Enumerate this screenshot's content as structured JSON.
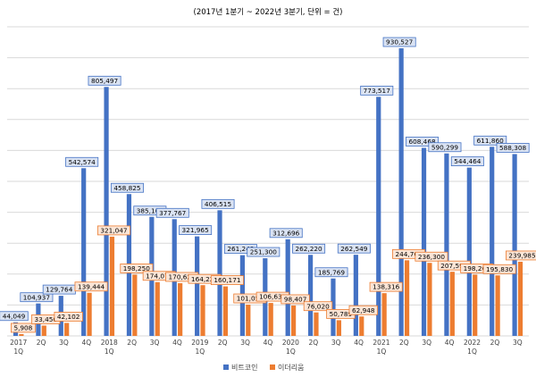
{
  "chart_data": {
    "type": "bar",
    "title": "(2017년 1분기 ~ 2022년 3분기, 단위 = 건)",
    "xlabel": "",
    "ylabel": "",
    "ylim": [
      0,
      1000000
    ],
    "grid": true,
    "legend_position": "bottom",
    "categories": [
      "2017 1Q",
      "2Q",
      "3Q",
      "4Q",
      "2018 1Q",
      "2Q",
      "3Q",
      "4Q",
      "2019 1Q",
      "2Q",
      "3Q",
      "4Q",
      "2020 1Q",
      "2Q",
      "3Q",
      "4Q",
      "2021 1Q",
      "2Q",
      "3Q",
      "4Q",
      "2022 1Q",
      "2Q",
      "3Q"
    ],
    "series": [
      {
        "name": "비트코인",
        "color": "#4472c4",
        "values": [
          44049,
          104937,
          129764,
          542574,
          805497,
          458825,
          385163,
          377767,
          321965,
          406515,
          261242,
          251300,
          312696,
          262220,
          185769,
          262549,
          773517,
          930527,
          608468,
          590299,
          544464,
          611860,
          588308
        ],
        "labels": [
          "44,049",
          "104,937",
          "129,764",
          "542,574",
          "805,497",
          "458,825",
          "385,163",
          "377,767",
          "321,965",
          "406,515",
          "261,242",
          "251,300",
          "312,696",
          "262,220",
          "185,769",
          "262,549",
          "773,517",
          "930,527",
          "608,468",
          "590,299",
          "544,464",
          "611,860",
          "588,308"
        ]
      },
      {
        "name": "이더리움",
        "color": "#ed7d31",
        "values": [
          5908,
          33450,
          42102,
          139444,
          321047,
          198250,
          174075,
          170621,
          164226,
          160171,
          101056,
          106631,
          98407,
          76020,
          50789,
          62948,
          138316,
          244700,
          236300,
          207590,
          198262,
          195830,
          239985
        ],
        "labels": [
          "5,908",
          "33,450",
          "42,102",
          "139,444",
          "321,047",
          "198,250",
          "174,075",
          "170,621",
          "164,226",
          "160,171",
          "101,056",
          "106,631",
          "98,407",
          "76,020",
          "50,789",
          "62,948",
          "138,316",
          "244,700",
          "236,300",
          "207,590",
          "198,262",
          "195,830",
          "239,985"
        ]
      }
    ]
  }
}
